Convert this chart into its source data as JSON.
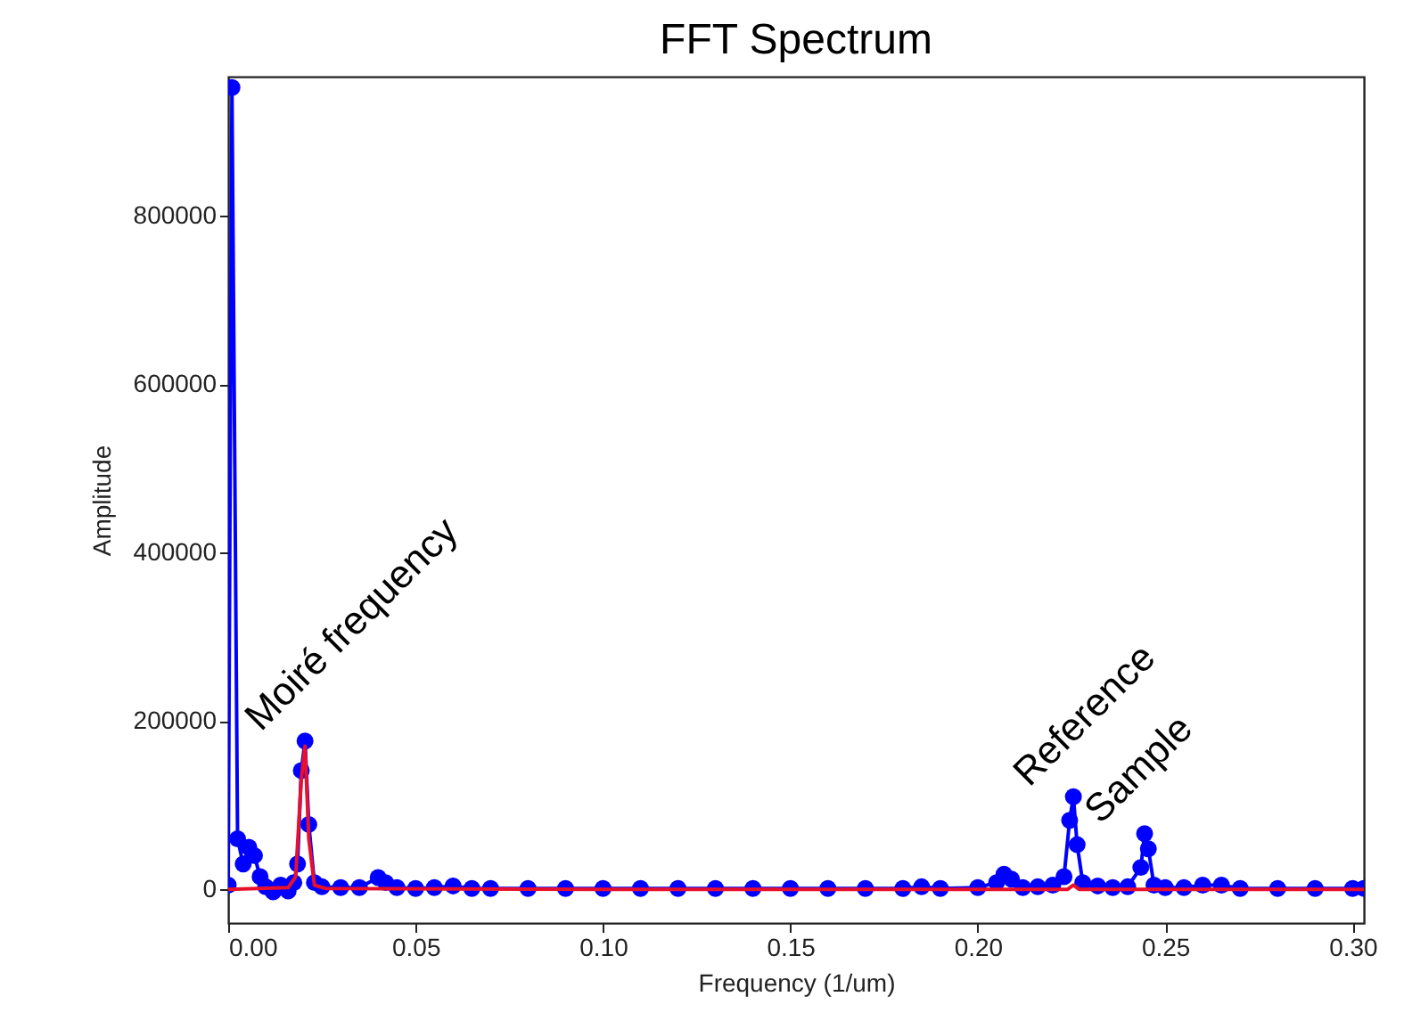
{
  "chart_data": {
    "type": "line",
    "title": "FFT Spectrum",
    "xlabel": "Frequency (1/um)",
    "ylabel": "Amplitude",
    "xlim": [
      0,
      0.303
    ],
    "ylim": [
      -40000,
      965000
    ],
    "xticks": [
      {
        "value": 0,
        "label": "0.00"
      },
      {
        "value": 0.05,
        "label": "0.05"
      },
      {
        "value": 0.1,
        "label": "0.10"
      },
      {
        "value": 0.15,
        "label": "0.15"
      },
      {
        "value": 0.2,
        "label": "0.20"
      },
      {
        "value": 0.25,
        "label": "0.25"
      },
      {
        "value": 0.3,
        "label": "0.30"
      }
    ],
    "yticks": [
      0,
      200000,
      400000,
      600000,
      800000
    ],
    "grid": false,
    "marker": "circle",
    "line_style": "solid",
    "series": [
      {
        "color": "#0000ff",
        "x": [
          0,
          0.001,
          0.0025,
          0.004,
          0.0055,
          0.007,
          0.0085,
          0.01,
          0.012,
          0.014,
          0.016,
          0.0175,
          0.0185,
          0.0195,
          0.0205,
          0.0215,
          0.023,
          0.025,
          0.03,
          0.035,
          0.04,
          0.042,
          0.045,
          0.05,
          0.055,
          0.06,
          0.065,
          0.07,
          0.08,
          0.09,
          0.1,
          0.11,
          0.12,
          0.13,
          0.14,
          0.15,
          0.16,
          0.17,
          0.18,
          0.185,
          0.19,
          0.2,
          0.205,
          0.207,
          0.209,
          0.212,
          0.216,
          0.22,
          0.223,
          0.2245,
          0.2255,
          0.2265,
          0.228,
          0.232,
          0.236,
          0.24,
          0.2435,
          0.2445,
          0.2455,
          0.247,
          0.25,
          0.255,
          0.26,
          0.265,
          0.27,
          0.28,
          0.29,
          0.3,
          0.303
        ],
        "values": [
          5000,
          952000,
          60000,
          30000,
          50000,
          40000,
          15000,
          3000,
          -3000,
          5000,
          -2000,
          8000,
          30000,
          141000,
          176000,
          77000,
          8000,
          3000,
          2000,
          2000,
          14000,
          8000,
          2000,
          1000,
          2000,
          4000,
          1000,
          1000,
          1000,
          1000,
          1000,
          1000,
          1000,
          1000,
          1000,
          1000,
          1000,
          1000,
          1000,
          3000,
          1000,
          2000,
          8000,
          18000,
          12000,
          2000,
          3000,
          5000,
          15000,
          82000,
          110000,
          53000,
          8000,
          4000,
          2000,
          3000,
          26000,
          66000,
          48000,
          5000,
          2000,
          2000,
          5000,
          5000,
          1000,
          1000,
          1000,
          1000,
          1000
        ]
      },
      {
        "color": "#e8102a",
        "marker": "none",
        "x": [
          0,
          0.016,
          0.018,
          0.0195,
          0.0205,
          0.0215,
          0.023,
          0.026,
          0.1,
          0.2,
          0.224,
          0.2255,
          0.227,
          0.303
        ],
        "values": [
          0,
          2000,
          15000,
          130000,
          170000,
          60000,
          5000,
          1000,
          0,
          0,
          0,
          5000,
          0,
          0
        ]
      }
    ],
    "annotations": [
      {
        "text": "Moiré frequency",
        "x": 0.0205,
        "y": 176000
      },
      {
        "text": "Reference",
        "x": 0.2255,
        "y": 110000
      },
      {
        "text": "Sample",
        "x": 0.2445,
        "y": 66000
      }
    ]
  }
}
